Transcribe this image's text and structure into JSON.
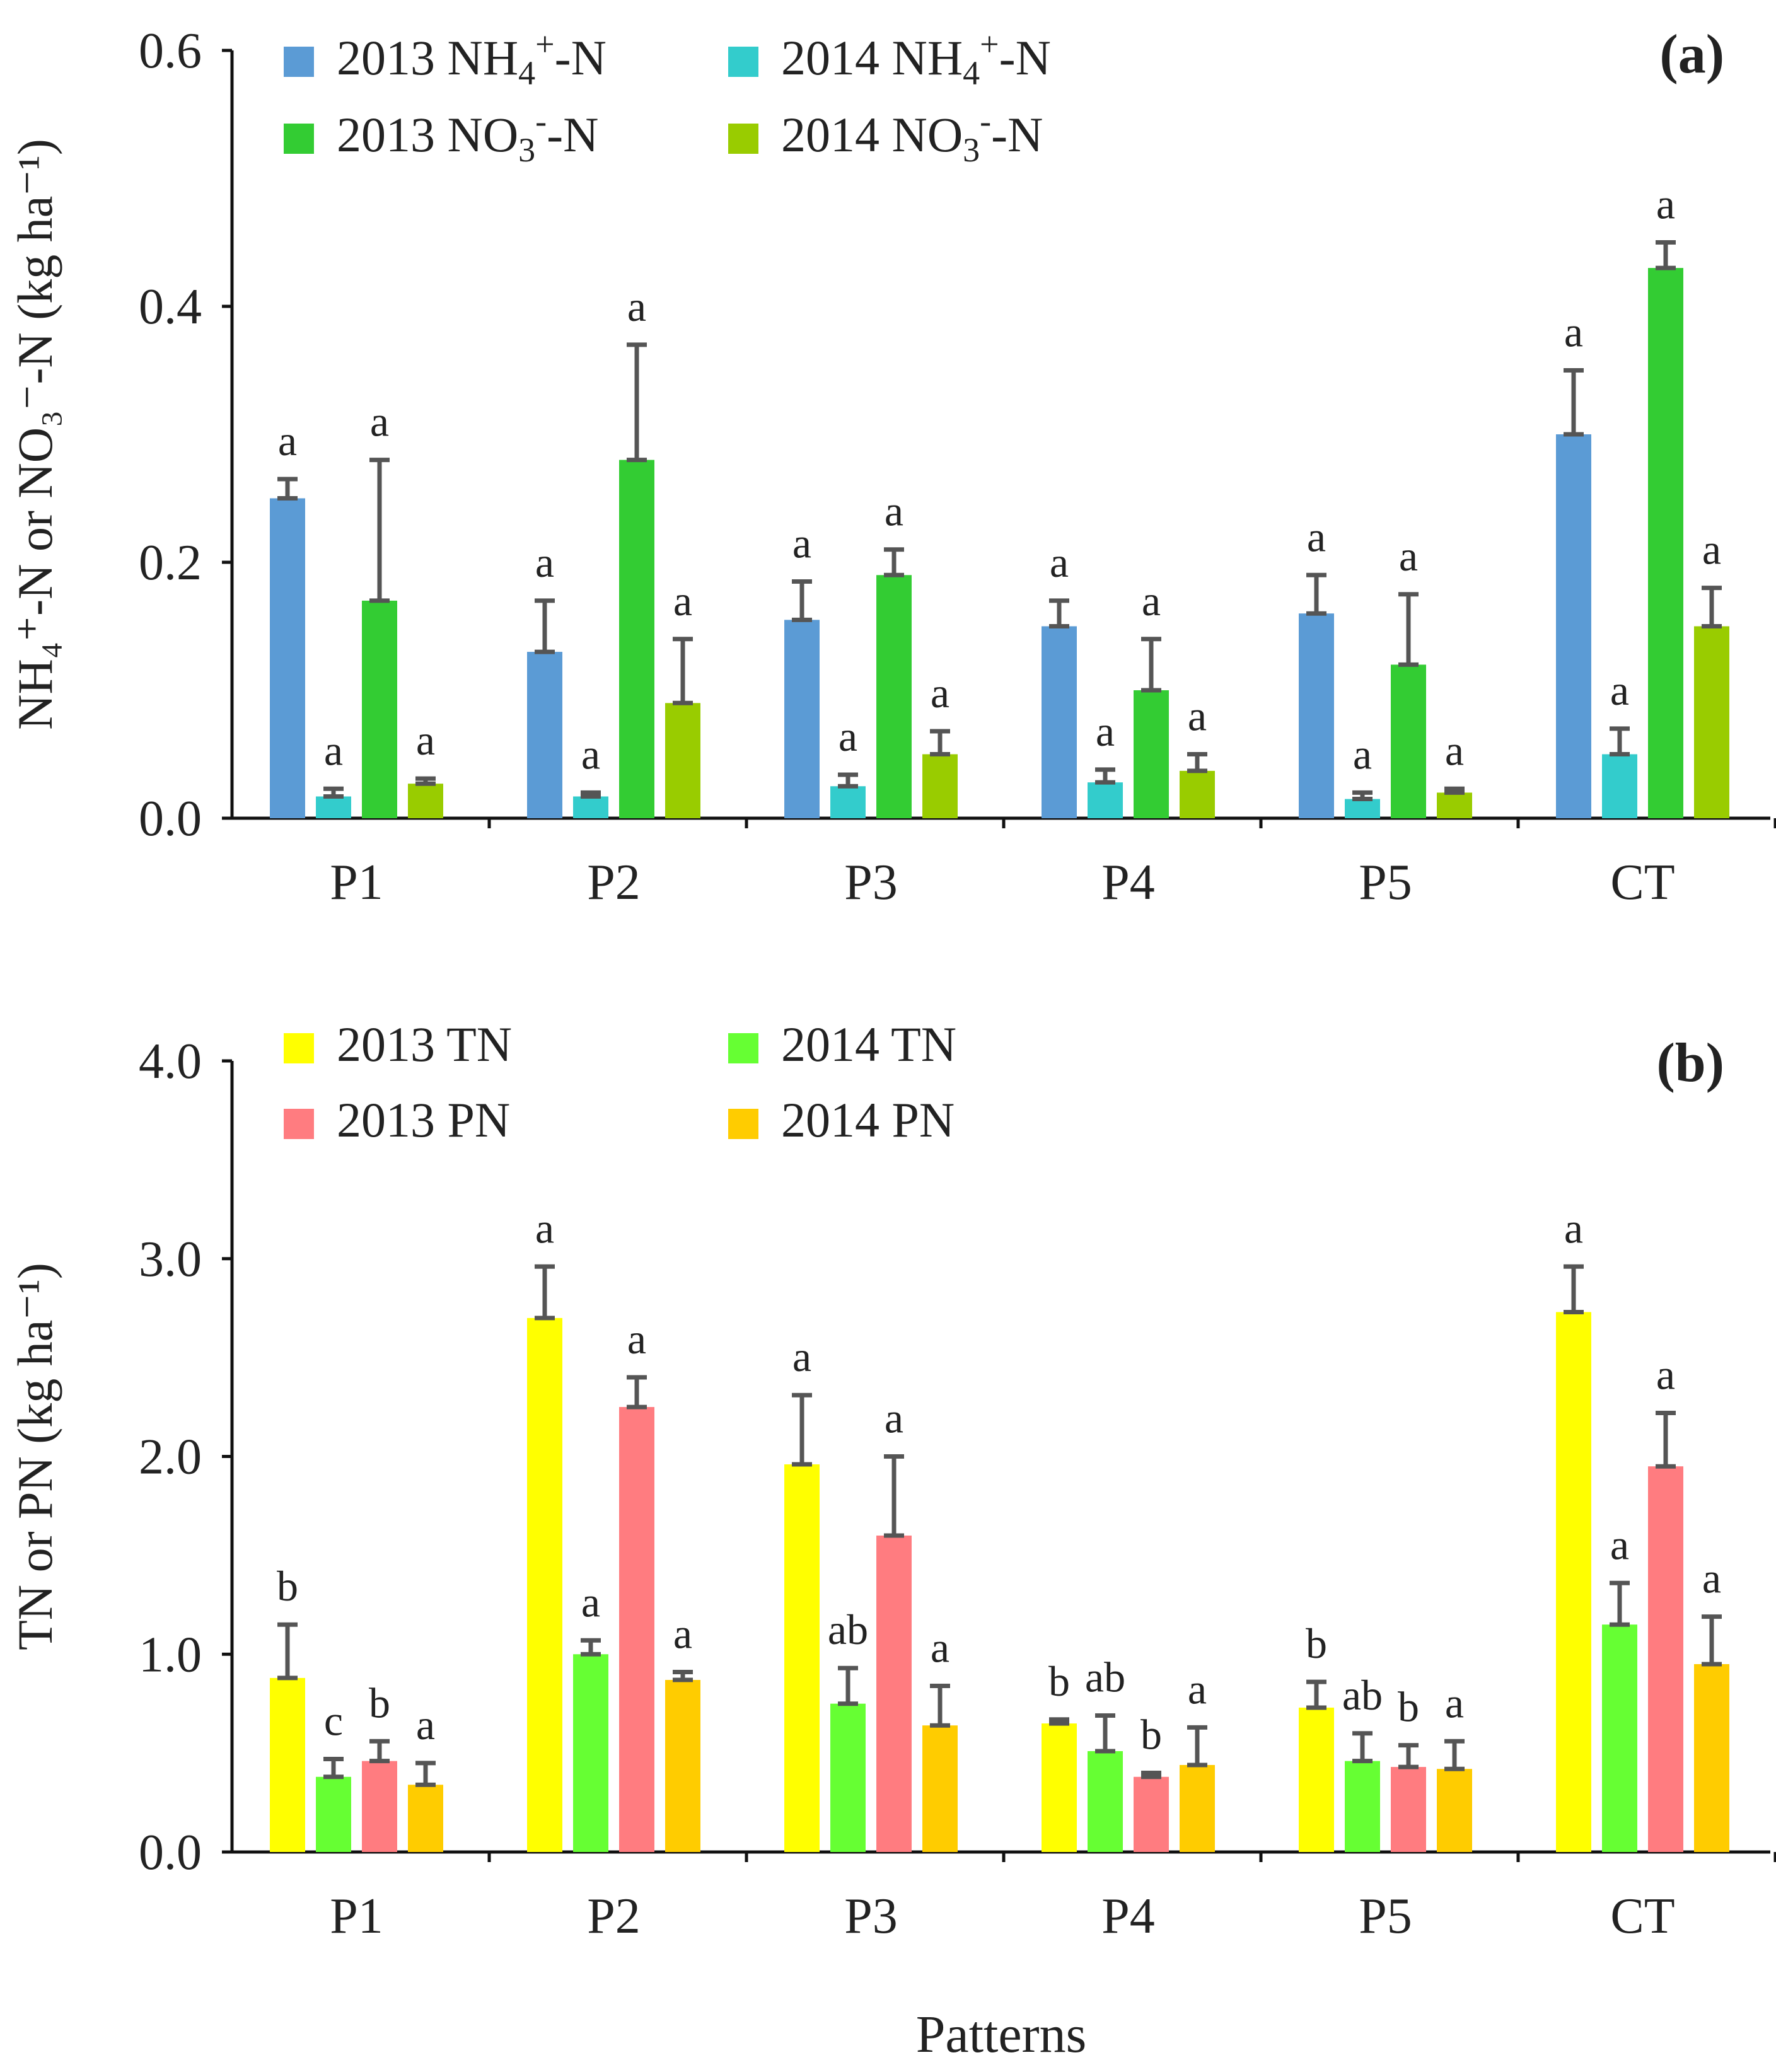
{
  "chart_data": [
    {
      "type": "bar",
      "panel_label": "(a)",
      "title": "",
      "xlabel": "",
      "ylabel": "NH₄⁺-N or NO₃⁻-N (kg ha⁻¹)",
      "ylim": [
        0,
        0.6
      ],
      "yticks": [
        0,
        0.2,
        0.4,
        0.6
      ],
      "yticklabels": [
        "0.0",
        "0.2",
        "0.4",
        "0.6"
      ],
      "categories": [
        "P1",
        "P2",
        "P3",
        "P4",
        "P5",
        "CT"
      ],
      "legend_position": "top-left",
      "series": [
        {
          "name": "2013 NH₄⁺-N",
          "legend": {
            "pre": "2013 NH",
            "sub": "4",
            "sup": "+",
            "post": "-N"
          },
          "color": "#5B9BD5",
          "values": [
            0.25,
            0.13,
            0.155,
            0.15,
            0.16,
            0.3
          ],
          "errors": [
            0.015,
            0.04,
            0.03,
            0.02,
            0.03,
            0.05
          ],
          "letters": [
            "a",
            "a",
            "a",
            "a",
            "a",
            "a"
          ]
        },
        {
          "name": "2014 NH₄⁺-N",
          "legend": {
            "pre": "2014 NH",
            "sub": "4",
            "sup": "+",
            "post": "-N"
          },
          "color": "#33CCCC",
          "values": [
            0.017,
            0.017,
            0.025,
            0.028,
            0.015,
            0.05
          ],
          "errors": [
            0.006,
            0.003,
            0.009,
            0.01,
            0.005,
            0.02
          ],
          "letters": [
            "a",
            "a",
            "a",
            "a",
            "a",
            "a"
          ]
        },
        {
          "name": "2013 NO₃⁻-N",
          "legend": {
            "pre": "2013 NO",
            "sub": "3",
            "sup": "-",
            "post": "-N"
          },
          "color": "#33CC33",
          "values": [
            0.17,
            0.28,
            0.19,
            0.1,
            0.12,
            0.43
          ],
          "errors": [
            0.11,
            0.09,
            0.02,
            0.04,
            0.055,
            0.02
          ],
          "letters": [
            "a",
            "a",
            "a",
            "a",
            "a",
            "a"
          ]
        },
        {
          "name": "2014 NO₃⁻-N",
          "legend": {
            "pre": "2014 NO",
            "sub": "3",
            "sup": "-",
            "post": "-N"
          },
          "color": "#99CC00",
          "values": [
            0.027,
            0.09,
            0.05,
            0.037,
            0.02,
            0.15
          ],
          "errors": [
            0.004,
            0.05,
            0.018,
            0.013,
            0.003,
            0.03
          ],
          "letters": [
            "a",
            "a",
            "a",
            "a",
            "a",
            "a"
          ]
        }
      ]
    },
    {
      "type": "bar",
      "panel_label": "(b)",
      "title": "",
      "xlabel": "Patterns",
      "ylabel": "TN or PN (kg ha⁻¹)",
      "ylim": [
        0,
        4.0
      ],
      "yticks": [
        0,
        1,
        2,
        3,
        4
      ],
      "yticklabels": [
        "0.0",
        "1.0",
        "2.0",
        "3.0",
        "4.0"
      ],
      "categories": [
        "P1",
        "P2",
        "P3",
        "P4",
        "P5",
        "CT"
      ],
      "legend_position": "top-left",
      "series": [
        {
          "name": "2013 TN",
          "legend": {
            "pre": "2013 TN",
            "sub": "",
            "sup": "",
            "post": ""
          },
          "color": "#FFFF00",
          "values": [
            0.88,
            2.7,
            1.96,
            0.65,
            0.73,
            2.73
          ],
          "errors": [
            0.27,
            0.26,
            0.35,
            0.02,
            0.13,
            0.23
          ],
          "letters": [
            "b",
            "a",
            "a",
            "b",
            "b",
            "a"
          ]
        },
        {
          "name": "2014 TN",
          "legend": {
            "pre": "2014 TN",
            "sub": "",
            "sup": "",
            "post": ""
          },
          "color": "#66FF33",
          "values": [
            0.38,
            1.0,
            0.75,
            0.51,
            0.46,
            1.15
          ],
          "errors": [
            0.09,
            0.07,
            0.18,
            0.18,
            0.14,
            0.21
          ],
          "letters": [
            "c",
            "a",
            "ab",
            "ab",
            "ab",
            "a"
          ]
        },
        {
          "name": "2013 PN",
          "legend": {
            "pre": "2013 PN",
            "sub": "",
            "sup": "",
            "post": ""
          },
          "color": "#FF7C80",
          "values": [
            0.46,
            2.25,
            1.6,
            0.38,
            0.43,
            1.95
          ],
          "errors": [
            0.1,
            0.15,
            0.4,
            0.02,
            0.11,
            0.27
          ],
          "letters": [
            "b",
            "a",
            "a",
            "b",
            "b",
            "a"
          ]
        },
        {
          "name": "2014 PN",
          "legend": {
            "pre": "2014 PN",
            "sub": "",
            "sup": "",
            "post": ""
          },
          "color": "#FFCC00",
          "values": [
            0.34,
            0.87,
            0.64,
            0.44,
            0.42,
            0.95
          ],
          "errors": [
            0.11,
            0.04,
            0.2,
            0.19,
            0.14,
            0.24
          ],
          "letters": [
            "a",
            "a",
            "a",
            "a",
            "a",
            "a"
          ]
        }
      ]
    }
  ]
}
